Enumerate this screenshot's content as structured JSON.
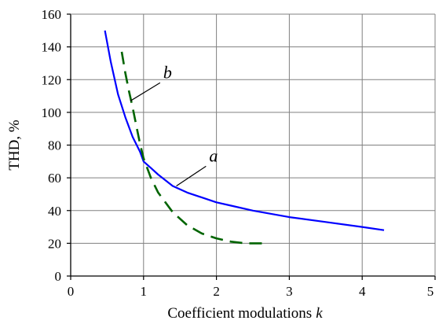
{
  "chart_data": {
    "type": "line",
    "title": "",
    "xlabel": "Coefficient modulations",
    "xlabel_var": "k",
    "ylabel": "THD, %",
    "xlim": [
      0,
      5
    ],
    "ylim": [
      0,
      160
    ],
    "xticks": [
      0,
      1,
      2,
      3,
      4,
      5
    ],
    "yticks": [
      0,
      20,
      40,
      60,
      80,
      100,
      120,
      140,
      160
    ],
    "grid": true,
    "colors": {
      "a": "#0000ff",
      "b": "#006400",
      "grid": "#808080",
      "axes": "#000000"
    },
    "series": [
      {
        "name": "a",
        "style": "solid",
        "x": [
          0.47,
          0.55,
          0.65,
          0.75,
          0.85,
          0.95,
          1.0,
          1.1,
          1.2,
          1.4,
          1.6,
          1.8,
          2.0,
          2.2,
          2.5,
          3.0,
          3.5,
          4.0,
          4.3
        ],
        "y": [
          150,
          131,
          111,
          97,
          85,
          76,
          70,
          66,
          62,
          55,
          51,
          48,
          45,
          43,
          40,
          36,
          33,
          30,
          28
        ]
      },
      {
        "name": "b",
        "style": "dashed",
        "x": [
          0.7,
          0.75,
          0.8,
          0.85,
          0.9,
          0.95,
          1.0,
          1.1,
          1.2,
          1.4,
          1.6,
          1.8,
          2.0,
          2.2,
          2.4,
          2.65
        ],
        "y": [
          137,
          124,
          113,
          103,
          92,
          81,
          72,
          60,
          51,
          39,
          31,
          26,
          23,
          21,
          20,
          20
        ]
      }
    ],
    "annotations": [
      {
        "text": "a",
        "x": 1.9,
        "y": 69,
        "leader_to": [
          1.45,
          55
        ]
      },
      {
        "text": "b",
        "x": 1.27,
        "y": 120,
        "leader_to": [
          0.82,
          107
        ]
      }
    ]
  }
}
